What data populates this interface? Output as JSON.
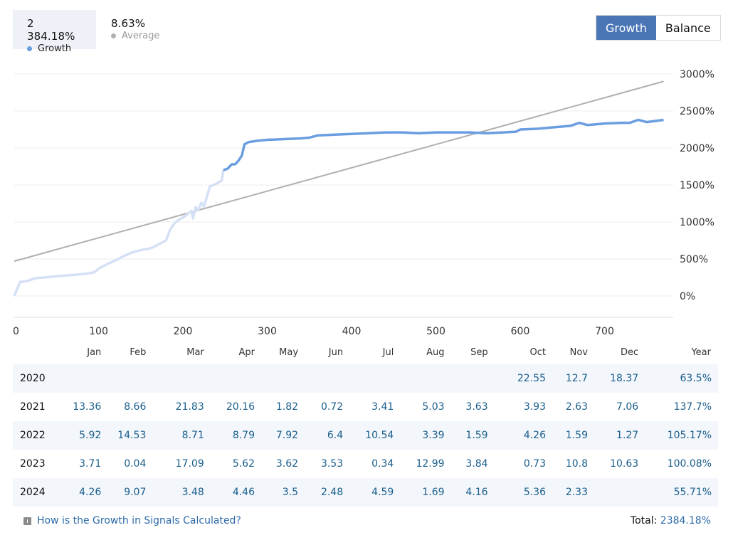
{
  "legend": {
    "growth": {
      "value": "2 384.18%",
      "label": "Growth",
      "color": "#6a9ee0"
    },
    "average": {
      "value": "8.63%",
      "label": "Average",
      "color": "#b0b0b0"
    }
  },
  "toggle": {
    "growth_label": "Growth",
    "balance_label": "Balance",
    "active": "Growth"
  },
  "chart_data": {
    "type": "line",
    "title": "",
    "xlabel": "",
    "ylabel": "",
    "xlim": [
      0,
      780
    ],
    "ylim": [
      -150,
      3000
    ],
    "x_ticks": [
      0,
      100,
      200,
      300,
      400,
      500,
      600,
      700
    ],
    "x_tick_labels": [
      "0",
      "100",
      "200",
      "300",
      "400",
      "500",
      "600",
      "700"
    ],
    "y_ticks": [
      0,
      500,
      1000,
      1500,
      2000,
      2500,
      3000
    ],
    "y_tick_labels": [
      "0%",
      "500%",
      "1000%",
      "1500%",
      "2000%",
      "2500%",
      "3000%"
    ],
    "grid": true,
    "series": [
      {
        "name": "Growth",
        "color": "#6a9ee0",
        "early_color": "#d6e0f5",
        "split_x": 250,
        "x": [
          0,
          7,
          15,
          25,
          35,
          45,
          55,
          65,
          75,
          85,
          95,
          100,
          105,
          112,
          120,
          130,
          140,
          150,
          160,
          165,
          170,
          175,
          180,
          185,
          190,
          195,
          200,
          205,
          210,
          212,
          215,
          218,
          222,
          225,
          232,
          236,
          240,
          246,
          248,
          253,
          258,
          262,
          266,
          270,
          273,
          278,
          290,
          300,
          320,
          340,
          350,
          360,
          380,
          400,
          420,
          440,
          460,
          480,
          500,
          520,
          540,
          560,
          580,
          595,
          600,
          620,
          640,
          650,
          660,
          670,
          680,
          700,
          720,
          730,
          740,
          750,
          770
        ],
        "y": [
          0,
          190,
          200,
          240,
          250,
          260,
          270,
          280,
          290,
          300,
          320,
          370,
          400,
          440,
          480,
          540,
          590,
          620,
          640,
          660,
          690,
          720,
          750,
          900,
          980,
          1030,
          1060,
          1100,
          1150,
          1050,
          1200,
          1160,
          1260,
          1210,
          1480,
          1500,
          1520,
          1560,
          1700,
          1720,
          1780,
          1780,
          1830,
          1900,
          2050,
          2080,
          2100,
          2110,
          2120,
          2130,
          2140,
          2170,
          2180,
          2190,
          2200,
          2210,
          2210,
          2200,
          2210,
          2210,
          2210,
          2200,
          2210,
          2220,
          2250,
          2260,
          2280,
          2290,
          2300,
          2340,
          2310,
          2330,
          2340,
          2340,
          2380,
          2350,
          2380
        ]
      },
      {
        "name": "Average",
        "color": "#b0b0b0",
        "x": [
          0,
          770
        ],
        "y": [
          470,
          2900
        ]
      }
    ]
  },
  "table": {
    "headers": [
      "",
      "Jan",
      "Feb",
      "Mar",
      "Apr",
      "May",
      "Jun",
      "Jul",
      "Aug",
      "Sep",
      "Oct",
      "Nov",
      "Dec",
      "Year"
    ],
    "rows": [
      [
        "2020",
        "",
        "",
        "",
        "",
        "",
        "",
        "",
        "",
        "",
        "22.55",
        "12.7",
        "18.37",
        "63.5%"
      ],
      [
        "2021",
        "13.36",
        "8.66",
        "21.83",
        "20.16",
        "1.82",
        "0.72",
        "3.41",
        "5.03",
        "3.63",
        "3.93",
        "2.63",
        "7.06",
        "137.7%"
      ],
      [
        "2022",
        "5.92",
        "14.53",
        "8.71",
        "8.79",
        "7.92",
        "6.4",
        "10.54",
        "3.39",
        "1.59",
        "4.26",
        "1.59",
        "1.27",
        "105.17%"
      ],
      [
        "2023",
        "3.71",
        "0.04",
        "17.09",
        "5.62",
        "3.62",
        "3.53",
        "0.34",
        "12.99",
        "3.84",
        "0.73",
        "10.8",
        "10.63",
        "100.08%"
      ],
      [
        "2024",
        "4.26",
        "9.07",
        "3.48",
        "4.46",
        "3.5",
        "2.48",
        "4.59",
        "1.69",
        "4.16",
        "5.36",
        "2.33",
        "",
        "55.71%"
      ]
    ]
  },
  "footer": {
    "link_text": "How is the Growth in Signals Calculated?",
    "total_label": "Total:",
    "total_value": "2384.18%",
    "icon": "info-icon"
  }
}
